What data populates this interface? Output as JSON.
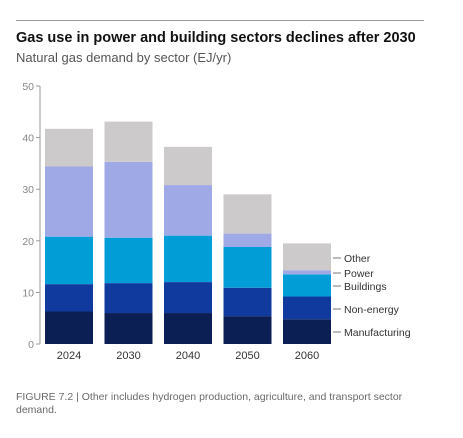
{
  "chart_data": {
    "type": "bar",
    "stacked": true,
    "title": "Gas use in power and building sectors declines after 2030",
    "subtitle": "Natural gas demand by sector (EJ/yr)",
    "categories": [
      "2024",
      "2030",
      "2040",
      "2050",
      "2060"
    ],
    "ylim": [
      0,
      50
    ],
    "yticks": [
      0,
      10,
      20,
      30,
      40,
      50
    ],
    "grid": false,
    "legend": "right",
    "series": [
      {
        "name": "Manufacturing",
        "color": "#0c1f55",
        "values": [
          6.3,
          6.0,
          6.0,
          5.4,
          4.8
        ]
      },
      {
        "name": "Non-energy",
        "color": "#103a9e",
        "values": [
          5.3,
          5.8,
          6.0,
          5.5,
          4.4
        ]
      },
      {
        "name": "Buildings",
        "color": "#019dd7",
        "values": [
          9.2,
          8.8,
          9.0,
          7.9,
          4.3
        ]
      },
      {
        "name": "Power",
        "color": "#9fa9e6",
        "values": [
          13.6,
          14.7,
          9.8,
          2.6,
          0.8
        ]
      },
      {
        "name": "Other",
        "color": "#cccaca",
        "values": [
          7.3,
          7.8,
          7.4,
          7.6,
          5.2
        ]
      }
    ]
  },
  "caption": "FIGURE 7.2 | Other includes hydrogen production, agriculture, and transport sector demand."
}
